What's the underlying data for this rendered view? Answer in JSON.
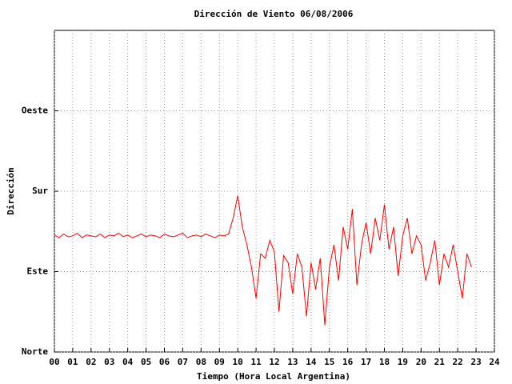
{
  "chart_data": {
    "type": "line",
    "title": "Dirección de Viento 06/08/2006",
    "x_label": "Tiempo (Hora Local Argentina)",
    "y_label": "Dirección",
    "xlim": [
      0,
      24
    ],
    "ylim": [
      0,
      360
    ],
    "xticks": [
      {
        "value": 0,
        "label": "00"
      },
      {
        "value": 1,
        "label": "01"
      },
      {
        "value": 2,
        "label": "02"
      },
      {
        "value": 3,
        "label": "03"
      },
      {
        "value": 4,
        "label": "04"
      },
      {
        "value": 5,
        "label": "05"
      },
      {
        "value": 6,
        "label": "06"
      },
      {
        "value": 7,
        "label": "07"
      },
      {
        "value": 8,
        "label": "08"
      },
      {
        "value": 9,
        "label": "09"
      },
      10,
      11,
      12,
      13,
      14,
      15,
      16,
      17,
      18,
      19,
      20,
      21,
      22,
      23,
      24
    ],
    "yticks": [
      {
        "value": 0,
        "label": "Norte"
      },
      {
        "value": 90,
        "label": "Este"
      },
      {
        "value": 180,
        "label": "Sur"
      },
      {
        "value": 270,
        "label": "Oeste"
      }
    ],
    "grid": true,
    "x": [
      0,
      0.25,
      0.5,
      0.75,
      1,
      1.25,
      1.5,
      1.75,
      2,
      2.25,
      2.5,
      2.75,
      3,
      3.25,
      3.5,
      3.75,
      4,
      4.25,
      4.5,
      4.75,
      5,
      5.25,
      5.5,
      5.75,
      6,
      6.25,
      6.5,
      6.75,
      7,
      7.25,
      7.5,
      7.75,
      8,
      8.25,
      8.5,
      8.75,
      9,
      9.25,
      9.5,
      9.75,
      10,
      10.25,
      10.5,
      10.75,
      11,
      11.25,
      11.5,
      11.75,
      12,
      12.25,
      12.5,
      12.75,
      13,
      13.25,
      13.5,
      13.75,
      14,
      14.25,
      14.5,
      14.75,
      15,
      15.25,
      15.5,
      15.75,
      16,
      16.25,
      16.5,
      16.75,
      17,
      17.25,
      17.5,
      17.75,
      18,
      18.25,
      18.5,
      18.75,
      19,
      19.25,
      19.5,
      19.75,
      20,
      20.25,
      20.5,
      20.75,
      21,
      21.25,
      21.5,
      21.75,
      22,
      22.25,
      22.5,
      22.75
    ],
    "series": [
      {
        "color": "#ff0000",
        "values": [
          131,
          128,
          132,
          129,
          130,
          133,
          128,
          131,
          130,
          129,
          132,
          128,
          131,
          130,
          133,
          129,
          131,
          128,
          130,
          132,
          129,
          131,
          130,
          128,
          132,
          130,
          129,
          131,
          133,
          128,
          130,
          131,
          129,
          132,
          130,
          128,
          131,
          130,
          132,
          150,
          175,
          140,
          120,
          95,
          60,
          110,
          105,
          125,
          112,
          45,
          108,
          100,
          65,
          110,
          95,
          40,
          100,
          70,
          105,
          30,
          95,
          120,
          80,
          140,
          115,
          160,
          75,
          120,
          145,
          110,
          150,
          125,
          165,
          115,
          140,
          85,
          130,
          150,
          110,
          130,
          120,
          80,
          100,
          125,
          75,
          110,
          95,
          120,
          90,
          60,
          110,
          95
        ]
      }
    ]
  }
}
